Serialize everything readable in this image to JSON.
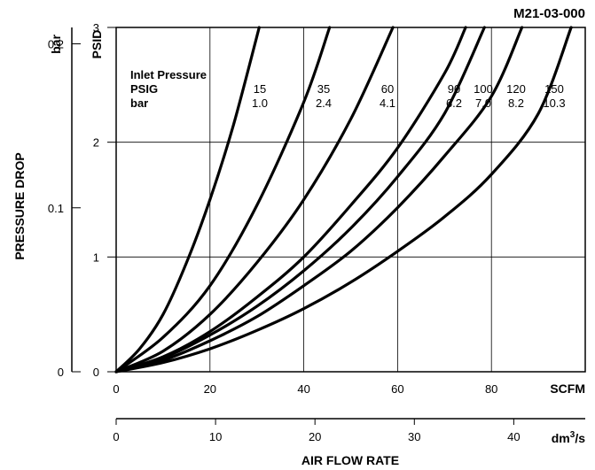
{
  "chart_data": {
    "type": "line",
    "part_number": "M21-03-000",
    "xlabel": "AIR FLOW RATE",
    "ylabel": "PRESSURE DROP",
    "x_unit_primary": "SCFM",
    "x_unit_secondary_base": "dm",
    "x_unit_secondary_exp": "3",
    "x_unit_secondary_tail": "/s",
    "y_unit_primary": "PSID",
    "y_unit_secondary": "bar",
    "xlim": [
      0,
      100
    ],
    "ylim": [
      0,
      3
    ],
    "x_ticks": [
      "0",
      "20",
      "40",
      "60",
      "80"
    ],
    "y_ticks": [
      "0",
      "1",
      "2",
      "3"
    ],
    "x2_ticks": [
      "0",
      "10",
      "20",
      "30",
      "40"
    ],
    "y2_ticks": [
      "0",
      "0.1",
      "0.2"
    ],
    "grid": true,
    "legend_heading": "Inlet Pressure",
    "legend_row1_label": "PSIG",
    "legend_row2_label": "bar",
    "series": [
      {
        "psig": "15",
        "bar": "1.0",
        "x": [
          0,
          5,
          10,
          15,
          20,
          25,
          30.5
        ],
        "y": [
          0,
          0.2,
          0.5,
          0.95,
          1.5,
          2.15,
          3.0
        ]
      },
      {
        "psig": "35",
        "bar": "2.4",
        "x": [
          0,
          10,
          20,
          30,
          40,
          45.5
        ],
        "y": [
          0,
          0.3,
          0.75,
          1.45,
          2.35,
          3.0
        ]
      },
      {
        "psig": "60",
        "bar": "4.1",
        "x": [
          0,
          10,
          20,
          30,
          40,
          50,
          59
        ],
        "y": [
          0,
          0.18,
          0.5,
          0.95,
          1.5,
          2.2,
          3.0
        ]
      },
      {
        "psig": "90",
        "bar": "6.2",
        "x": [
          0,
          10,
          20,
          30,
          40,
          50,
          60,
          70,
          74.5
        ],
        "y": [
          0,
          0.13,
          0.35,
          0.65,
          1.0,
          1.45,
          1.95,
          2.6,
          3.0
        ]
      },
      {
        "psig": "100",
        "bar": "7.0",
        "x": [
          0,
          10,
          20,
          30,
          40,
          50,
          60,
          70,
          78.5
        ],
        "y": [
          0,
          0.12,
          0.32,
          0.57,
          0.88,
          1.25,
          1.7,
          2.25,
          3.0
        ]
      },
      {
        "psig": "120",
        "bar": "8.2",
        "x": [
          0,
          10,
          20,
          30,
          40,
          50,
          60,
          70,
          80,
          86.5
        ],
        "y": [
          0,
          0.1,
          0.27,
          0.48,
          0.75,
          1.05,
          1.43,
          1.88,
          2.4,
          3.0
        ]
      },
      {
        "psig": "150",
        "bar": "10.3",
        "x": [
          0,
          10,
          20,
          30,
          40,
          50,
          60,
          70,
          80,
          90,
          97
        ],
        "y": [
          0,
          0.08,
          0.2,
          0.36,
          0.55,
          0.78,
          1.05,
          1.35,
          1.72,
          2.25,
          3.0
        ]
      }
    ]
  }
}
